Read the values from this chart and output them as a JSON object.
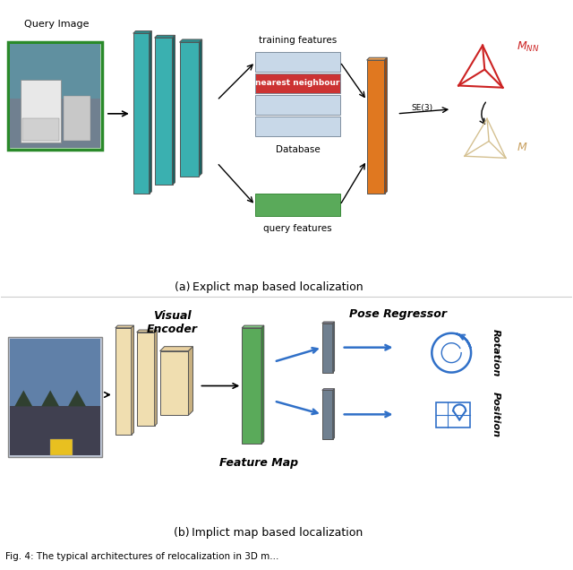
{
  "fig_width": 6.4,
  "fig_height": 6.36,
  "background_color": "#ffffff",
  "caption_a": "(a) Explict map based localization",
  "caption_b": "(b) Implict map based localization",
  "label_query_image": "Query Image",
  "label_training_features": "training features",
  "label_database": "Database",
  "label_nearest_neighbour": "nearest neighbour",
  "label_query_features": "query features",
  "label_SE3": "SE(3)",
  "label_visual_encoder": "Visual\nEncoder",
  "label_pose_regressor": "Pose Regressor",
  "label_feature_map": "Feature Map",
  "label_rotation": "Rotation",
  "label_position": "Position",
  "teal_face": "#3ab0b0",
  "teal_dark": "#1a6060",
  "teal_mid": "#2a9090",
  "orange_color": "#e07820",
  "orange_light": "#f0a050",
  "orange_dark": "#9a4810",
  "green_color": "#5aaa5a",
  "green_dark": "#3a8a3a",
  "green_light": "#80cc80",
  "red_color": "#cc2222",
  "tan_wire": "#d4c090",
  "tan_label": "#c8a060",
  "slate_color": "#708090",
  "slate_dark": "#506070",
  "slate_top": "#9090a8",
  "blue_arrow": "#3070c8",
  "db_color": "#c8d8e8",
  "db_border": "#8090a0",
  "nn_color": "#cc3333",
  "wheat_color": "#f0deb0",
  "wheat_dark": "#c8b080",
  "wheat_top": "#e8d0a0"
}
